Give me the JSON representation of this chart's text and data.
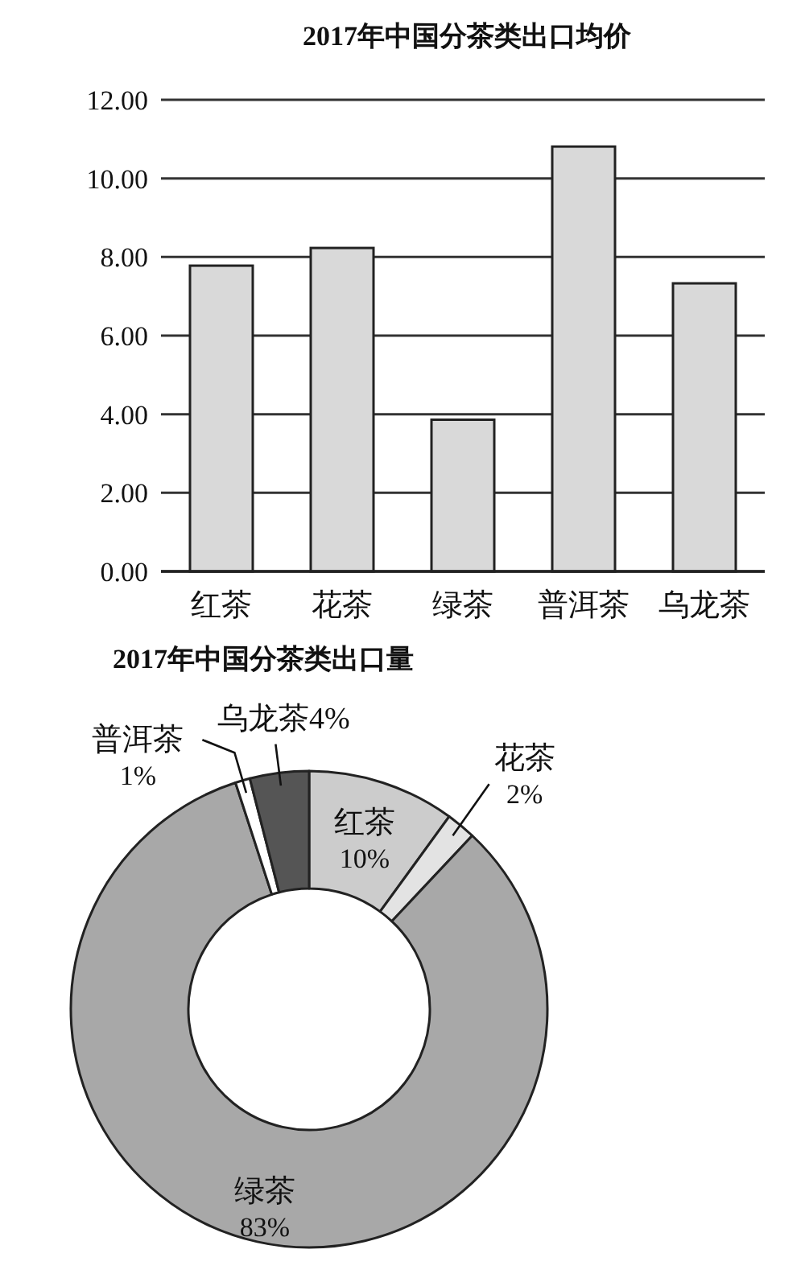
{
  "chart_data": [
    {
      "type": "bar",
      "title": "2017年中国分茶类出口均价",
      "categories": [
        "红茶",
        "花茶",
        "绿茶",
        "普洱茶",
        "乌龙茶"
      ],
      "values": [
        7.78,
        8.23,
        3.86,
        10.81,
        7.33
      ],
      "color": "#d9d9d9",
      "ylim": [
        0,
        12
      ],
      "yticks": [
        {
          "value": 0,
          "label": "0.00"
        },
        {
          "value": 2,
          "label": "2.00"
        },
        {
          "value": 4,
          "label": "4.00"
        },
        {
          "value": 6,
          "label": "6.00"
        },
        {
          "value": 8,
          "label": "8.00"
        },
        {
          "value": 10,
          "label": "10.00"
        },
        {
          "value": 12,
          "label": "12.00"
        }
      ],
      "grid": "y"
    },
    {
      "type": "donut",
      "title": "2017年中国分茶类出口量",
      "categories": [
        "红茶",
        "花茶",
        "绿茶",
        "普洱茶",
        "乌龙茶"
      ],
      "values": [
        10,
        2,
        83,
        1,
        4
      ],
      "colors": [
        "#cccccc",
        "#e3e3e3",
        "#a8a8a8",
        "#ffffff",
        "#555555"
      ],
      "value_labels": [
        "10%",
        "2%",
        "83%",
        "1%",
        "4%"
      ]
    }
  ]
}
